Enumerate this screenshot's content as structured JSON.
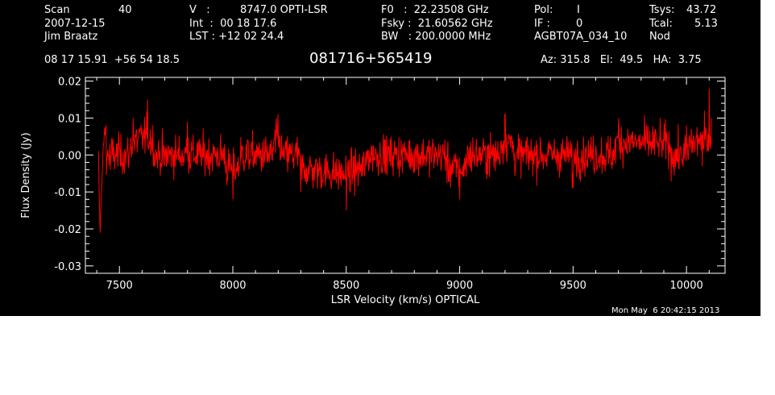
{
  "header": {
    "scan_label": "Scan",
    "scan_value": "40",
    "date": "2007-12-15",
    "observer": "Jim Braatz",
    "v_label": "V   :",
    "v_value": "8747.0 OPTI-LSR",
    "int_line": "Int  :  00 18 17.6",
    "lst_line": "LST : +12 02 24.4",
    "f0_line": "F0   :  22.23508 GHz",
    "fsky_line": "Fsky :  21.60562 GHz",
    "bw_line": "BW   : 200.0000 MHz",
    "pol_label": "Pol:",
    "pol_value": "I",
    "if_label": "IF :",
    "if_value": "0",
    "project": "AGBT07A_034_10",
    "tsys_label": "Tsys:",
    "tsys_value": "43.72",
    "tcal_label": "Tcal:",
    "tcal_value": "5.13",
    "mode": "Nod",
    "ra_dec": "08 17 15.91  +56 54 18.5",
    "source": "081716+565419",
    "az_el_ha": "Az: 315.8   El:  49.5   HA:  3.75"
  },
  "footer": {
    "timestamp": "Mon May  6 20:42:15 2013"
  },
  "chart_data": {
    "type": "line",
    "xlabel": "LSR Velocity (km/s) OPTICAL",
    "ylabel": "Flux Density (Jy)",
    "xlim": [
      7350,
      10170
    ],
    "ylim": [
      -0.032,
      0.021
    ],
    "x_ticks": [
      7500,
      8000,
      8500,
      9000,
      9500,
      10000
    ],
    "y_ticks": [
      0.02,
      0.01,
      0.0,
      -0.01,
      -0.02,
      -0.03
    ],
    "x_tick_labels": [
      "7500",
      "8000",
      "8500",
      "9000",
      "9500",
      "10000"
    ],
    "y_tick_labels": [
      "0.02",
      "0.01",
      "0.00",
      "-0.01",
      "-0.02",
      "-0.03"
    ],
    "grid": false,
    "series": [
      {
        "color": "#ff0000",
        "x_start": 7408,
        "x_end": 10110,
        "baseline": 0.0,
        "noise_rms": 0.0045,
        "points": [
          [
            7410,
            -0.008
          ],
          [
            7415,
            -0.021
          ],
          [
            7420,
            -0.012
          ],
          [
            7430,
            0.003
          ],
          [
            7440,
            0.008
          ],
          [
            7460,
            -0.004
          ],
          [
            7500,
            0.002
          ],
          [
            7560,
            0.01
          ],
          [
            7625,
            0.015
          ],
          [
            7700,
            -0.003
          ],
          [
            7800,
            0.009
          ],
          [
            8000,
            -0.012
          ],
          [
            8200,
            0.011
          ],
          [
            8300,
            -0.01
          ],
          [
            8500,
            -0.015
          ],
          [
            8750,
            0.003
          ],
          [
            9000,
            -0.012
          ],
          [
            9200,
            0.011
          ],
          [
            9500,
            -0.009
          ],
          [
            9700,
            0.01
          ],
          [
            10000,
            0.008
          ],
          [
            10080,
            0.012
          ],
          [
            10100,
            0.018
          ],
          [
            10110,
            0.01
          ]
        ]
      }
    ]
  }
}
